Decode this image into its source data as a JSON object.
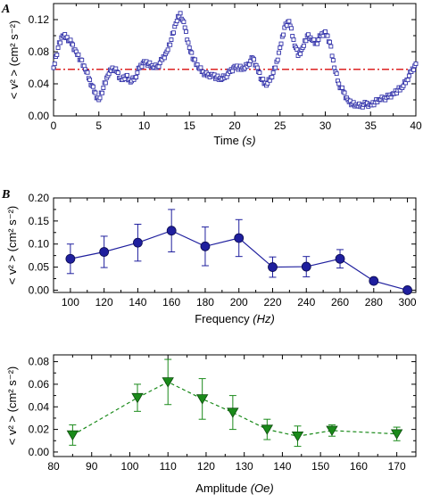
{
  "chart_data": [
    {
      "panel": "A",
      "type": "scatter",
      "xlabel": "Time",
      "xlabel_unit": "(s)",
      "ylabel": "< v² > (cm² s⁻²)",
      "xlim": [
        0,
        40
      ],
      "ylim": [
        0,
        0.14
      ],
      "xticks": [
        0,
        5,
        10,
        15,
        20,
        25,
        30,
        35,
        40
      ],
      "yticks": [
        0.0,
        0.04,
        0.08,
        0.12
      ],
      "marker_color": "#3333aa",
      "reference_line": {
        "y": 0.058,
        "color": "#dd2222",
        "style": "dash-dot"
      },
      "x": [
        0.0,
        0.5,
        1.0,
        1.5,
        2.0,
        2.5,
        3.0,
        3.5,
        4.0,
        4.5,
        5.0,
        5.5,
        6.0,
        6.5,
        7.0,
        7.5,
        8.0,
        8.5,
        9.0,
        9.5,
        10.0,
        10.5,
        11.0,
        11.5,
        12.0,
        12.5,
        13.0,
        13.5,
        14.0,
        14.5,
        15.0,
        15.5,
        16.0,
        16.5,
        17.0,
        17.5,
        18.0,
        18.5,
        19.0,
        19.5,
        20.0,
        20.5,
        21.0,
        21.5,
        22.0,
        22.5,
        23.0,
        23.5,
        24.0,
        24.5,
        25.0,
        25.5,
        26.0,
        26.5,
        27.0,
        27.5,
        28.0,
        28.5,
        29.0,
        29.5,
        30.0,
        30.5,
        31.0,
        31.5,
        32.0,
        32.5,
        33.0,
        33.5,
        34.0,
        34.5,
        35.0,
        35.5,
        36.0,
        36.5,
        37.0,
        37.5,
        38.0,
        38.5,
        39.0,
        39.5,
        40.0
      ],
      "y": [
        0.06,
        0.085,
        0.1,
        0.098,
        0.09,
        0.08,
        0.07,
        0.058,
        0.045,
        0.03,
        0.02,
        0.035,
        0.05,
        0.06,
        0.055,
        0.045,
        0.05,
        0.042,
        0.048,
        0.06,
        0.068,
        0.065,
        0.06,
        0.062,
        0.07,
        0.08,
        0.095,
        0.115,
        0.128,
        0.11,
        0.085,
        0.07,
        0.06,
        0.055,
        0.05,
        0.052,
        0.048,
        0.045,
        0.05,
        0.055,
        0.062,
        0.06,
        0.058,
        0.065,
        0.072,
        0.06,
        0.045,
        0.038,
        0.048,
        0.06,
        0.085,
        0.11,
        0.118,
        0.095,
        0.075,
        0.085,
        0.1,
        0.095,
        0.09,
        0.1,
        0.105,
        0.092,
        0.06,
        0.04,
        0.03,
        0.02,
        0.015,
        0.012,
        0.013,
        0.015,
        0.014,
        0.017,
        0.02,
        0.022,
        0.024,
        0.028,
        0.032,
        0.035,
        0.045,
        0.055,
        0.065
      ]
    },
    {
      "panel": "B",
      "type": "line",
      "xlabel": "Frequency",
      "xlabel_unit": "(Hz)",
      "ylabel": "< v² > (cm² s⁻²)",
      "xlim": [
        90,
        305
      ],
      "ylim": [
        -0.005,
        0.2
      ],
      "xticks": [
        100,
        120,
        140,
        160,
        180,
        200,
        220,
        240,
        260,
        280,
        300
      ],
      "yticks": [
        0.0,
        0.05,
        0.1,
        0.15,
        0.2
      ],
      "ytick_labels": [
        "0.00",
        "0.05",
        "0.10",
        "0.15",
        "0.20"
      ],
      "marker_color": "#1f1f9e",
      "line_style": "solid",
      "x": [
        100,
        120,
        140,
        160,
        180,
        200,
        220,
        240,
        260,
        280,
        300
      ],
      "y": [
        0.068,
        0.083,
        0.103,
        0.129,
        0.095,
        0.113,
        0.05,
        0.051,
        0.068,
        0.02,
        0.0
      ],
      "err": [
        0.032,
        0.034,
        0.04,
        0.046,
        0.042,
        0.04,
        0.022,
        0.022,
        0.02,
        0.0,
        0.0
      ]
    },
    {
      "panel": "C",
      "type": "line",
      "xlabel": "Amplitude",
      "xlabel_unit": "(Oe)",
      "ylabel": "< v² > (cm² s⁻²)",
      "xlim": [
        80,
        175
      ],
      "ylim": [
        -0.004,
        0.086
      ],
      "xticks": [
        80,
        90,
        100,
        110,
        120,
        130,
        140,
        150,
        160,
        170
      ],
      "yticks": [
        0.0,
        0.02,
        0.04,
        0.06,
        0.08
      ],
      "ytick_labels": [
        "0.00",
        "0.02",
        "0.04",
        "0.06",
        "0.08"
      ],
      "marker_color": "#1a8a1a",
      "line_style": "dashed",
      "x": [
        85,
        102,
        110,
        119,
        127,
        136,
        144,
        153,
        170
      ],
      "y": [
        0.015,
        0.048,
        0.062,
        0.047,
        0.035,
        0.02,
        0.014,
        0.019,
        0.016
      ],
      "err": [
        0.009,
        0.012,
        0.02,
        0.018,
        0.015,
        0.009,
        0.009,
        0.005,
        0.006
      ]
    }
  ]
}
